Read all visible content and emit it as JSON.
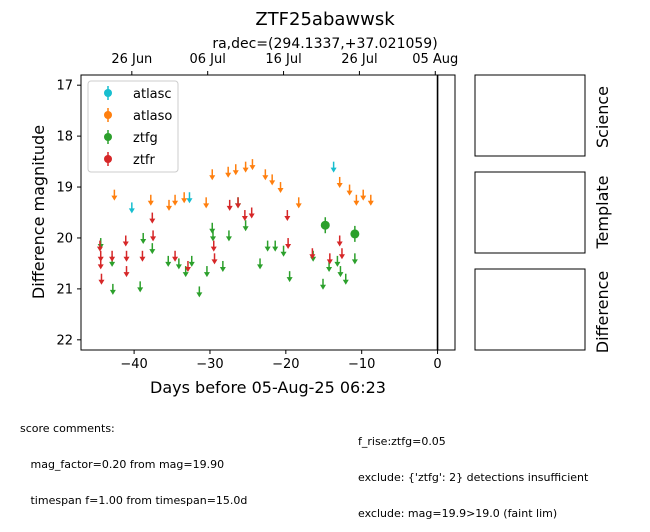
{
  "title": "ZTF25abawwsk",
  "top_axis_label": "ra,dec=(294.1337,+37.021059)",
  "top_ticks": [
    {
      "label": "26 Jun",
      "x": -40.3
    },
    {
      "label": "06 Jul",
      "x": -30.3
    },
    {
      "label": "16 Jul",
      "x": -20.3
    },
    {
      "label": "26 Jul",
      "x": -10.3
    },
    {
      "label": "05 Aug",
      "x": -0.3
    }
  ],
  "stamps": {
    "science": "Science",
    "template": "Template",
    "difference": "Difference"
  },
  "comments": {
    "left": [
      "score comments:",
      "   mag_factor=0.20 from mag=19.90",
      "   timespan f=1.00 from timespan=15.0d"
    ],
    "right": [
      "f_rise:ztfg=0.05",
      "exclude: {'ztfg': 2} detections insufficient",
      "exclude: mag=19.9>19.0 (faint lim)"
    ]
  },
  "chart_data": {
    "type": "scatter",
    "xlabel": "Days before 05-Aug-25 06:23",
    "ylabel": "Difference magnitude",
    "xlim": [
      -47,
      2.3
    ],
    "ylim": [
      22.2,
      16.8
    ],
    "y_inverted": true,
    "xticks": [
      -40,
      -30,
      -20,
      -10,
      0
    ],
    "yticks": [
      17,
      18,
      19,
      20,
      21,
      22
    ],
    "vline_x": 0,
    "legend_position": "upper left",
    "series": [
      {
        "name": "atlasc",
        "color": "#17becf",
        "upper_limits": [
          [
            -40.3,
            19.4
          ],
          [
            -32.7,
            19.2
          ],
          [
            -13.7,
            18.6
          ]
        ],
        "detections": []
      },
      {
        "name": "atlaso",
        "color": "#ff7f0e",
        "upper_limits": [
          [
            -42.6,
            19.15
          ],
          [
            -37.8,
            19.25
          ],
          [
            -35.4,
            19.35
          ],
          [
            -34.6,
            19.25
          ],
          [
            -33.4,
            19.2
          ],
          [
            -30.5,
            19.3
          ],
          [
            -29.7,
            18.75
          ],
          [
            -27.6,
            18.7
          ],
          [
            -26.6,
            18.65
          ],
          [
            -25.3,
            18.6
          ],
          [
            -24.4,
            18.55
          ],
          [
            -22.7,
            18.75
          ],
          [
            -21.8,
            18.85
          ],
          [
            -20.7,
            19.0
          ],
          [
            -18.3,
            19.3
          ],
          [
            -12.9,
            18.9
          ],
          [
            -11.6,
            19.05
          ],
          [
            -10.7,
            19.25
          ],
          [
            -9.8,
            19.15
          ],
          [
            -8.8,
            19.25
          ]
        ],
        "detections": []
      },
      {
        "name": "ztfg",
        "color": "#2ca02c",
        "upper_limits": [
          [
            -44.4,
            20.1
          ],
          [
            -42.9,
            20.45
          ],
          [
            -42.8,
            21.0
          ],
          [
            -39.2,
            20.95
          ],
          [
            -38.8,
            20.0
          ],
          [
            -37.6,
            20.2
          ],
          [
            -35.5,
            20.45
          ],
          [
            -34.1,
            20.5
          ],
          [
            -33.2,
            20.65
          ],
          [
            -32.4,
            20.45
          ],
          [
            -31.4,
            21.05
          ],
          [
            -30.4,
            20.65
          ],
          [
            -29.7,
            19.8
          ],
          [
            -29.6,
            19.95
          ],
          [
            -28.3,
            20.55
          ],
          [
            -27.5,
            19.95
          ],
          [
            -26.3,
            19.3
          ],
          [
            -25.3,
            19.75
          ],
          [
            -23.4,
            20.5
          ],
          [
            -22.4,
            20.15
          ],
          [
            -21.4,
            20.15
          ],
          [
            -20.3,
            20.25
          ],
          [
            -19.5,
            20.75
          ],
          [
            -16.4,
            20.35
          ],
          [
            -15.1,
            20.9
          ],
          [
            -14.3,
            20.55
          ],
          [
            -13.2,
            20.45
          ],
          [
            -12.8,
            20.65
          ],
          [
            -12.1,
            20.8
          ],
          [
            -10.9,
            20.4
          ]
        ],
        "detections": [
          [
            -14.8,
            19.75
          ],
          [
            -10.9,
            19.92
          ]
        ]
      },
      {
        "name": "ztfr",
        "color": "#d62728",
        "upper_limits": [
          [
            -44.5,
            20.15
          ],
          [
            -44.4,
            20.35
          ],
          [
            -44.4,
            20.5
          ],
          [
            -44.3,
            20.8
          ],
          [
            -42.9,
            20.35
          ],
          [
            -41.1,
            20.05
          ],
          [
            -41.0,
            20.35
          ],
          [
            -41.0,
            20.65
          ],
          [
            -38.9,
            20.35
          ],
          [
            -37.6,
            19.6
          ],
          [
            -37.5,
            19.95
          ],
          [
            -34.6,
            20.35
          ],
          [
            -32.9,
            20.55
          ],
          [
            -29.5,
            20.15
          ],
          [
            -29.4,
            20.4
          ],
          [
            -27.4,
            19.35
          ],
          [
            -26.3,
            19.3
          ],
          [
            -25.4,
            19.55
          ],
          [
            -24.5,
            19.5
          ],
          [
            -19.8,
            19.55
          ],
          [
            -19.7,
            20.1
          ],
          [
            -16.5,
            20.3
          ],
          [
            -14.2,
            20.4
          ],
          [
            -12.9,
            20.05
          ],
          [
            -12.6,
            20.3
          ]
        ],
        "detections": []
      }
    ]
  }
}
